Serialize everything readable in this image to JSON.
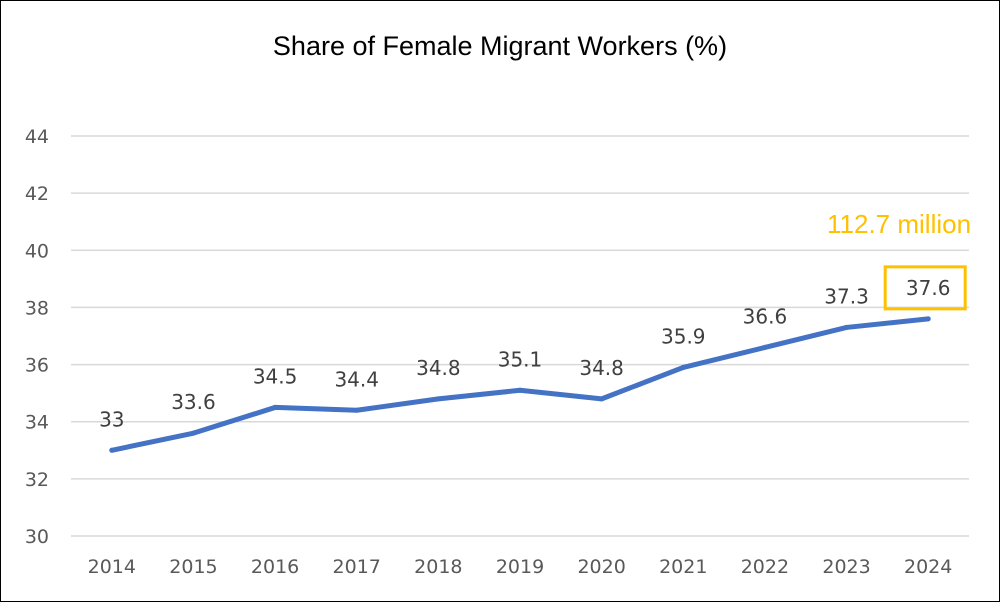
{
  "chart_data": {
    "type": "line",
    "title": "Share of Female Migrant Workers (%)",
    "xlabel": "",
    "ylabel": "",
    "categories": [
      "2014",
      "2015",
      "2016",
      "2017",
      "2018",
      "2019",
      "2020",
      "2021",
      "2022",
      "2023",
      "2024"
    ],
    "series": [
      {
        "name": "Share of Female Migrant Workers (%)",
        "values": [
          33,
          33.6,
          34.5,
          34.4,
          34.8,
          35.1,
          34.8,
          35.9,
          36.6,
          37.3,
          37.6
        ],
        "labels": [
          "33",
          "33.6",
          "34.5",
          "34.4",
          "34.8",
          "35.1",
          "34.8",
          "35.9",
          "36.6",
          "37.3",
          "37.6"
        ],
        "color": "#4472C4"
      }
    ],
    "ylim": [
      30,
      44
    ],
    "yticks": [
      "30",
      "32",
      "34",
      "36",
      "38",
      "40",
      "42",
      "44"
    ],
    "grid": true,
    "legend": "none",
    "annotation": {
      "text": "112.7 million",
      "highlight_category": "2024",
      "color": "#FFC000"
    }
  }
}
